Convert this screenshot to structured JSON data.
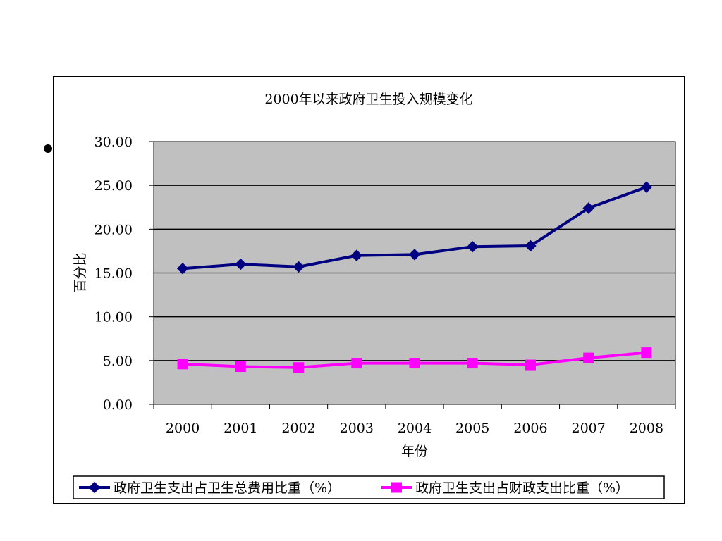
{
  "slide": {
    "bullet": "•"
  },
  "chart_data": {
    "type": "line",
    "title": "2000年以来政府卫生投入规模变化",
    "xlabel": "年份",
    "ylabel": "百分比",
    "categories": [
      "2000",
      "2001",
      "2002",
      "2003",
      "2004",
      "2005",
      "2006",
      "2007",
      "2008"
    ],
    "ylim": [
      0,
      30
    ],
    "yticks": [
      "0.00",
      "5.00",
      "10.00",
      "15.00",
      "20.00",
      "25.00",
      "30.00"
    ],
    "grid": true,
    "legend": "bottom",
    "plot_background": "#c0c0c0",
    "series": [
      {
        "name": "政府卫生支出占卫生总费用比重（%）",
        "color": "#000080",
        "marker": "diamond",
        "values": [
          15.5,
          16.0,
          15.7,
          17.0,
          17.1,
          18.0,
          18.1,
          22.4,
          24.8
        ]
      },
      {
        "name": "政府卫生支出占财政支出比重（%）",
        "color": "#ff00ff",
        "marker": "square",
        "values": [
          4.6,
          4.3,
          4.2,
          4.7,
          4.7,
          4.7,
          4.5,
          5.3,
          5.9
        ]
      }
    ]
  }
}
